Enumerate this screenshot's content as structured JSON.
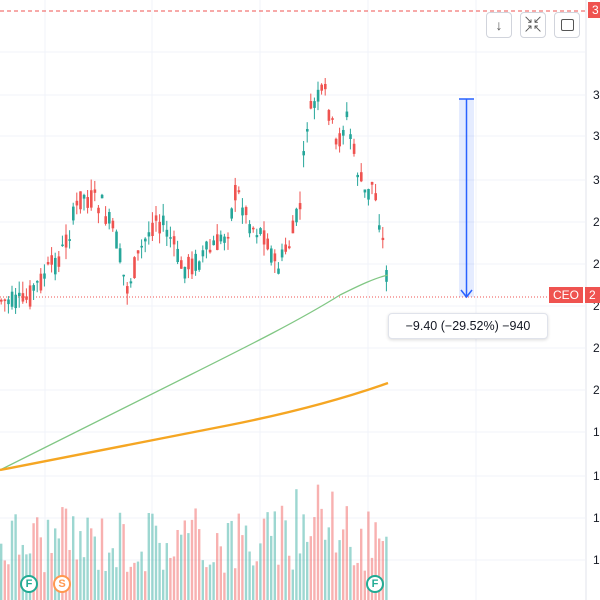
{
  "toolbar": {
    "scroll_down_icon": "arrow-down",
    "collapse_icon": "collapse-arrows",
    "fullscreen_icon": "screen"
  },
  "price_axis": {
    "labels": [
      "3",
      "3",
      "3",
      "2",
      "2",
      "2",
      "2",
      "2",
      "1",
      "1",
      "1",
      "1"
    ],
    "top_tag": "3"
  },
  "symbol_tag": {
    "ticker": "CEO",
    "price_prefix": "2"
  },
  "measure": {
    "readout": "−9.40 (−29.52%) −940"
  },
  "markers": [
    {
      "letter": "F",
      "color": "#22ab94"
    },
    {
      "letter": "S",
      "color": "#ff9850"
    },
    {
      "letter": "F",
      "color": "#22ab94"
    }
  ],
  "colors": {
    "up": "#26a69a",
    "down": "#ef5350",
    "ma_fast": "#81c784",
    "ma_slow": "#f5a623",
    "measure": "#2962ff",
    "alert": "#ef5350"
  }
}
